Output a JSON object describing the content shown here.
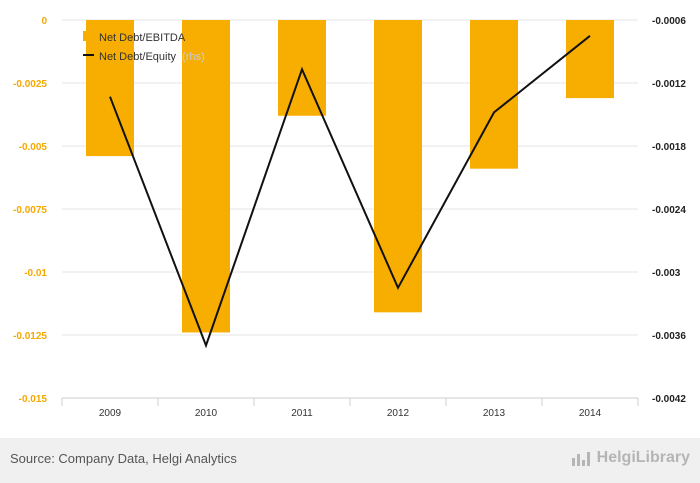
{
  "chart_data": {
    "type": "bar+line",
    "categories": [
      "2009",
      "2010",
      "2011",
      "2012",
      "2013",
      "2014"
    ],
    "series": [
      {
        "name": "Net Debt/EBITDA",
        "type": "bar",
        "axis": "left",
        "values": [
          -0.0054,
          -0.0124,
          -0.0038,
          -0.0116,
          -0.0059,
          -0.0031
        ]
      },
      {
        "name": "Net Debt/Equity",
        "type": "line",
        "axis": "right",
        "axis_note": "(rhs)",
        "values": [
          -0.00133,
          -0.0037,
          -0.00107,
          -0.00315,
          -0.00148,
          -0.00075
        ]
      }
    ],
    "y_left": {
      "min": -0.015,
      "max": 0,
      "ticks": [
        0,
        -0.0025,
        -0.005,
        -0.0075,
        -0.01,
        -0.0125,
        -0.015
      ],
      "tick_labels": [
        "0",
        "-0.0025",
        "-0.005",
        "-0.0075",
        "-0.01",
        "-0.0125",
        "-0.015"
      ]
    },
    "y_right": {
      "min": -0.0042,
      "max": -0.0006,
      "ticks": [
        -0.0006,
        -0.0012,
        -0.0018,
        -0.0024,
        -0.003,
        -0.0036,
        -0.0042
      ],
      "tick_labels": [
        "-0.0006",
        "-0.0012",
        "-0.0018",
        "-0.0024",
        "-0.003",
        "-0.0036",
        "-0.0042"
      ]
    },
    "grid": true,
    "legend_position": "top-left"
  },
  "colors": {
    "bar": "#f8ae00",
    "line": "#111111",
    "grid": "#e6e6e6",
    "left_axis_text": "#f5a800"
  },
  "footer": {
    "source": "Source: Company Data, Helgi Analytics",
    "brand": "HelgiLibrary",
    "brand_icon": "bar-chart-icon"
  }
}
